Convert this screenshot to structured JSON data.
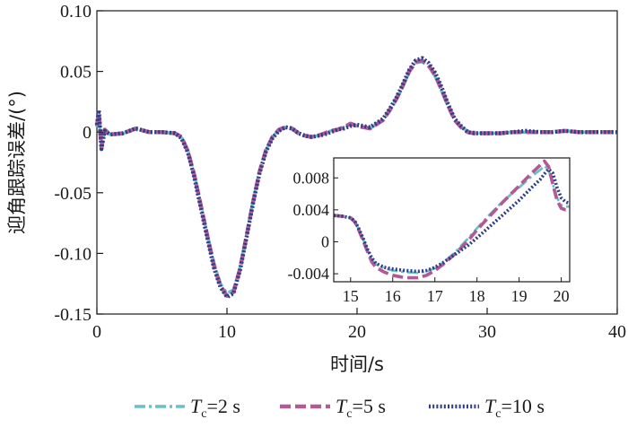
{
  "chart_data": {
    "type": "line",
    "title": "",
    "xlabel": "时间/s",
    "ylabel": "迎角跟踪误差/(°)",
    "xlim": [
      0,
      40
    ],
    "ylim": [
      -0.15,
      0.1
    ],
    "xticks": [
      "0",
      "10",
      "20",
      "30",
      "40"
    ],
    "yticks": [
      "-0.15",
      "-0.10",
      "-0.05",
      "0",
      "0.05",
      "0.10"
    ],
    "grid": false,
    "legend_position": "bottom",
    "series": [
      {
        "name_italic": "T",
        "name_sub": "c",
        "name_rest": "=2 s",
        "color": "#67c2c8",
        "dash": "dashdot",
        "x": [
          0,
          0.15,
          0.35,
          0.6,
          1,
          2,
          3,
          4,
          5,
          6,
          6.5,
          7,
          7.5,
          8,
          8.5,
          9,
          9.5,
          10,
          10.5,
          11,
          11.5,
          12,
          12.5,
          13,
          13.5,
          14,
          14.5,
          15,
          15.5,
          16,
          16.5,
          17,
          17.5,
          18,
          18.5,
          19,
          19.5,
          20,
          21,
          22,
          22.5,
          23,
          23.5,
          24,
          24.5,
          25,
          25.5,
          26,
          26.5,
          27,
          27.5,
          28,
          28.5,
          29,
          29.5,
          30,
          31,
          32,
          33,
          34,
          35,
          36,
          37,
          38,
          39,
          40
        ],
        "y": [
          0.004,
          0.015,
          -0.012,
          0.002,
          -0.002,
          -0.001,
          0.002,
          0.0,
          0.0,
          -0.001,
          -0.004,
          -0.015,
          -0.035,
          -0.06,
          -0.085,
          -0.108,
          -0.125,
          -0.133,
          -0.13,
          -0.112,
          -0.085,
          -0.057,
          -0.032,
          -0.015,
          -0.004,
          0.002,
          0.004,
          0.003,
          -0.001,
          -0.003,
          -0.004,
          -0.003,
          -0.001,
          0.001,
          0.002,
          0.004,
          0.006,
          0.005,
          0.003,
          0.01,
          0.017,
          0.026,
          0.037,
          0.049,
          0.057,
          0.058,
          0.054,
          0.046,
          0.034,
          0.021,
          0.01,
          0.004,
          0.001,
          0.0,
          -0.001,
          -0.001,
          -0.001,
          0.0,
          0.0,
          0.0,
          0.0,
          0.001,
          0.0,
          0.0,
          0.0,
          0.0
        ]
      },
      {
        "name_italic": "T",
        "name_sub": "c",
        "name_rest": "=5 s",
        "color": "#b25a98",
        "dash": "dash",
        "x": [
          0,
          0.15,
          0.35,
          0.6,
          1,
          2,
          3,
          4,
          5,
          6,
          6.5,
          7,
          7.5,
          8,
          8.5,
          9,
          9.5,
          10,
          10.5,
          11,
          11.5,
          12,
          12.5,
          13,
          13.5,
          14,
          14.5,
          15,
          15.5,
          16,
          16.5,
          17,
          17.5,
          18,
          18.5,
          19,
          19.5,
          20,
          21,
          22,
          22.5,
          23,
          23.5,
          24,
          24.5,
          25,
          25.5,
          26,
          26.5,
          27,
          27.5,
          28,
          28.5,
          29,
          29.5,
          30,
          31,
          32,
          33,
          34,
          35,
          36,
          37,
          38,
          39,
          40
        ],
        "y": [
          0.005,
          0.016,
          -0.013,
          0.002,
          -0.002,
          -0.001,
          0.003,
          0.0,
          0.0,
          -0.001,
          -0.004,
          -0.016,
          -0.036,
          -0.061,
          -0.086,
          -0.11,
          -0.127,
          -0.135,
          -0.132,
          -0.113,
          -0.086,
          -0.058,
          -0.033,
          -0.015,
          -0.004,
          0.002,
          0.004,
          0.003,
          -0.001,
          -0.003,
          -0.004,
          -0.003,
          -0.001,
          0.001,
          0.002,
          0.004,
          0.007,
          0.005,
          0.003,
          0.01,
          0.018,
          0.027,
          0.038,
          0.05,
          0.058,
          0.059,
          0.055,
          0.047,
          0.035,
          0.022,
          0.01,
          0.004,
          0.0,
          -0.001,
          -0.001,
          -0.001,
          -0.001,
          0.0,
          0.0,
          0.0,
          0.0,
          0.001,
          0.0,
          0.0,
          0.0,
          0.0
        ]
      },
      {
        "name_italic": "T",
        "name_sub": "c",
        "name_rest": "=10 s",
        "color": "#2e3d85",
        "dash": "dot",
        "x": [
          0,
          0.15,
          0.35,
          0.6,
          1,
          2,
          3,
          4,
          5,
          6,
          6.5,
          7,
          7.5,
          8,
          8.5,
          9,
          9.5,
          10,
          10.5,
          11,
          11.5,
          12,
          12.5,
          13,
          13.5,
          14,
          14.5,
          15,
          15.5,
          16,
          16.5,
          17,
          17.5,
          18,
          18.5,
          19,
          19.5,
          20,
          21,
          22,
          22.5,
          23,
          23.5,
          24,
          24.5,
          25,
          25.5,
          26,
          26.5,
          27,
          27.5,
          28,
          28.5,
          29,
          29.5,
          30,
          31,
          32,
          33,
          34,
          35,
          36,
          37,
          38,
          39,
          40
        ],
        "y": [
          0.006,
          0.018,
          -0.014,
          0.001,
          -0.002,
          -0.001,
          0.003,
          0.0,
          0.0,
          -0.001,
          -0.005,
          -0.017,
          -0.038,
          -0.063,
          -0.088,
          -0.112,
          -0.128,
          -0.136,
          -0.133,
          -0.114,
          -0.087,
          -0.059,
          -0.034,
          -0.016,
          -0.005,
          0.001,
          0.004,
          0.003,
          -0.001,
          -0.003,
          -0.004,
          -0.003,
          -0.002,
          0.0,
          0.002,
          0.003,
          0.005,
          0.006,
          0.004,
          0.011,
          0.019,
          0.028,
          0.039,
          0.051,
          0.059,
          0.061,
          0.057,
          0.049,
          0.037,
          0.023,
          0.011,
          0.005,
          0.0,
          -0.001,
          -0.001,
          -0.001,
          -0.001,
          0.0,
          0.001,
          0.0,
          0.0,
          0.001,
          0.0,
          0.0,
          0.0,
          0.0
        ]
      }
    ],
    "inset": {
      "xlim": [
        14.6,
        20.2
      ],
      "ylim": [
        -0.005,
        0.0105
      ],
      "xticks": [
        "15",
        "16",
        "17",
        "18",
        "19",
        "20"
      ],
      "yticks": [
        "-0.004",
        "0",
        "0.004",
        "0.008"
      ],
      "series": [
        {
          "x": [
            14.6,
            14.8,
            15.0,
            15.1,
            15.2,
            15.3,
            15.4,
            15.5,
            15.6,
            15.8,
            16.0,
            16.3,
            16.6,
            16.8,
            17.0,
            17.2,
            17.5,
            17.8,
            18.0,
            18.3,
            18.6,
            19.0,
            19.3,
            19.5,
            19.6,
            19.7,
            19.8,
            19.9,
            20.0,
            20.1,
            20.2
          ],
          "y": [
            0.0033,
            0.0032,
            0.003,
            0.0025,
            0.0015,
            0.0003,
            -0.001,
            -0.0022,
            -0.0028,
            -0.0033,
            -0.0036,
            -0.0038,
            -0.0039,
            -0.0037,
            -0.0033,
            -0.0026,
            -0.0012,
            0.0005,
            0.0017,
            0.0034,
            0.005,
            0.0068,
            0.0082,
            0.009,
            0.0095,
            0.009,
            0.0072,
            0.0055,
            0.0046,
            0.0044,
            0.0044
          ]
        },
        {
          "x": [
            14.6,
            14.8,
            15.0,
            15.1,
            15.2,
            15.3,
            15.4,
            15.5,
            15.6,
            15.8,
            16.0,
            16.3,
            16.6,
            16.8,
            17.0,
            17.2,
            17.5,
            17.8,
            18.0,
            18.3,
            18.6,
            19.0,
            19.3,
            19.5,
            19.6,
            19.7,
            19.8,
            19.9,
            20.0,
            20.1,
            20.2
          ],
          "y": [
            0.0033,
            0.0032,
            0.003,
            0.0025,
            0.0014,
            0.0001,
            -0.0012,
            -0.0025,
            -0.0032,
            -0.0038,
            -0.0042,
            -0.0045,
            -0.0045,
            -0.0042,
            -0.0036,
            -0.0028,
            -0.0014,
            0.0002,
            0.0015,
            0.0032,
            0.0049,
            0.007,
            0.0086,
            0.0096,
            0.0101,
            0.0094,
            0.0072,
            0.0052,
            0.0042,
            0.004,
            0.004
          ]
        },
        {
          "x": [
            14.6,
            14.8,
            15.0,
            15.1,
            15.2,
            15.3,
            15.4,
            15.5,
            15.6,
            15.8,
            16.0,
            16.3,
            16.6,
            16.8,
            17.0,
            17.2,
            17.5,
            17.8,
            18.0,
            18.3,
            18.6,
            19.0,
            19.3,
            19.5,
            19.6,
            19.7,
            19.8,
            19.9,
            20.0,
            20.1,
            20.2
          ],
          "y": [
            0.0033,
            0.0032,
            0.003,
            0.0026,
            0.0016,
            0.0004,
            -0.0009,
            -0.002,
            -0.0027,
            -0.0032,
            -0.0034,
            -0.0036,
            -0.0037,
            -0.0036,
            -0.0032,
            -0.0026,
            -0.0015,
            -0.0004,
            0.0005,
            0.0019,
            0.0033,
            0.0052,
            0.0068,
            0.0078,
            0.0085,
            0.0091,
            0.0086,
            0.0068,
            0.0055,
            0.005,
            0.0048
          ]
        }
      ]
    }
  }
}
